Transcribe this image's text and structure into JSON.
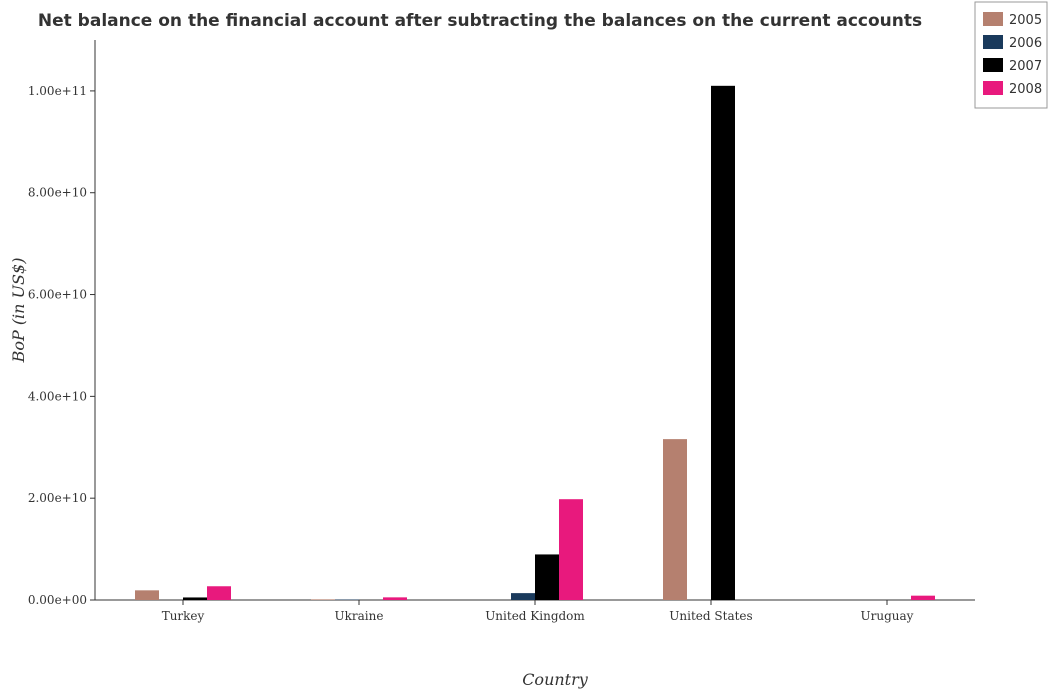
{
  "chart_data": {
    "type": "bar",
    "title": "Net balance on the financial account after subtracting the balances on the current accounts",
    "xlabel": "Country",
    "ylabel": "BoP (in US$)",
    "categories": [
      "Turkey",
      "Ukraine",
      "United Kingdom",
      "United States",
      "Uruguay"
    ],
    "ylim": [
      0,
      110000000000
    ],
    "yticks": [
      0,
      20000000000,
      40000000000,
      60000000000,
      80000000000,
      100000000000
    ],
    "ytick_labels": [
      "0.00e+00",
      "2.00e+10",
      "4.00e+10",
      "6.00e+10",
      "8.00e+10",
      "1.00e+11"
    ],
    "legend_position": "top-right",
    "grid": false,
    "series": [
      {
        "name": "2005",
        "color": "#b5806f",
        "values": [
          1900000000,
          120000000,
          0,
          31600000000,
          0
        ]
      },
      {
        "name": "2006",
        "color": "#1a3a5c",
        "values": [
          0,
          90000000,
          1350000000,
          0,
          0
        ]
      },
      {
        "name": "2007",
        "color": "#000000",
        "values": [
          500000000,
          0,
          8950000000,
          101000000000,
          0
        ]
      },
      {
        "name": "2008",
        "color": "#e8197d",
        "values": [
          2700000000,
          520000000,
          19800000000,
          0,
          850000000
        ]
      }
    ]
  }
}
